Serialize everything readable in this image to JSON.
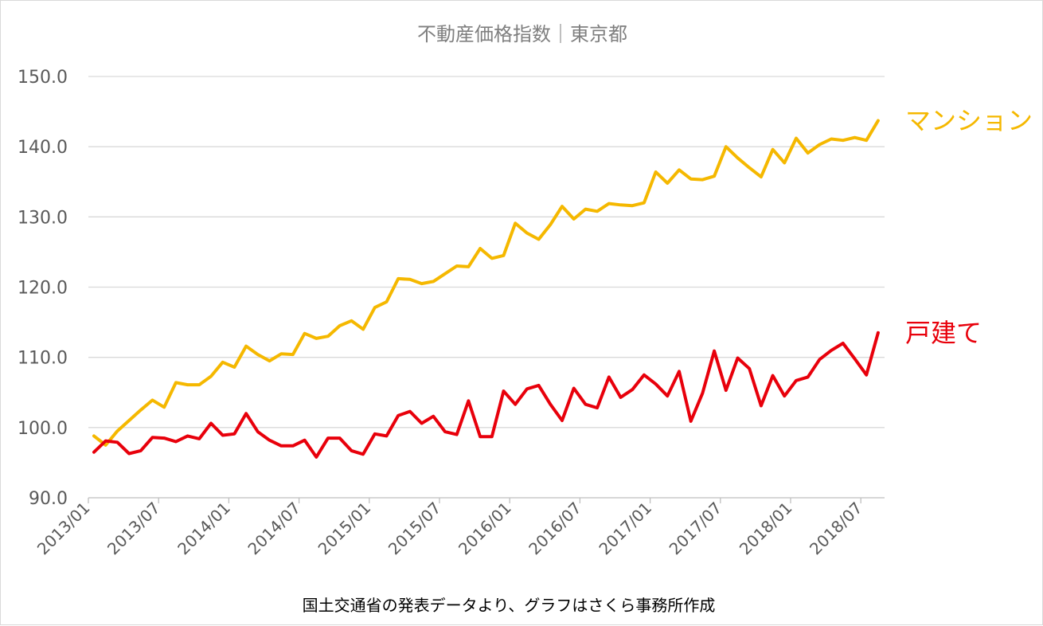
{
  "chart_data": {
    "type": "line",
    "title": "不動産価格指数｜東京都",
    "source_note": "国土交通省の発表データより、グラフはさくら事務所作成",
    "ylim": [
      90,
      150
    ],
    "yticks": [
      "150.0",
      "140.0",
      "130.0",
      "120.0",
      "110.0",
      "100.0",
      "90.0"
    ],
    "ytick_values": [
      150,
      140,
      130,
      120,
      110,
      100,
      90
    ],
    "xtick_labels": [
      "2013/01",
      "2013/07",
      "2014/01",
      "2014/07",
      "2015/01",
      "2015/07",
      "2016/01",
      "2016/07",
      "2017/01",
      "2017/07",
      "2018/01",
      "2018/07"
    ],
    "x_start": "2013/01",
    "x_end": "2018/09",
    "grid": true,
    "series": [
      {
        "name": "マンション",
        "color": "#f5b800",
        "values": [
          98.8,
          97.5,
          99.5,
          101.0,
          102.5,
          103.9,
          102.9,
          106.4,
          106.1,
          106.1,
          107.3,
          109.3,
          108.6,
          111.6,
          110.4,
          109.5,
          110.5,
          110.4,
          113.4,
          112.7,
          113.0,
          114.5,
          115.2,
          114.0,
          117.1,
          117.9,
          121.2,
          121.1,
          120.5,
          120.8,
          121.9,
          123.0,
          122.9,
          125.5,
          124.1,
          124.5,
          129.1,
          127.7,
          126.8,
          128.9,
          131.5,
          129.7,
          131.1,
          130.8,
          131.9,
          131.7,
          131.6,
          132.0,
          136.4,
          134.8,
          136.7,
          135.4,
          135.3,
          135.8,
          140.0,
          138.4,
          137.0,
          135.7,
          139.6,
          137.7,
          141.2,
          139.1,
          140.3,
          141.1,
          140.9,
          141.3,
          140.9,
          143.7
        ]
      },
      {
        "name": "戸建て",
        "color": "#e8000b",
        "values": [
          96.5,
          98.1,
          97.9,
          96.3,
          96.7,
          98.6,
          98.5,
          98.0,
          98.8,
          98.4,
          100.6,
          98.9,
          99.1,
          102.0,
          99.4,
          98.2,
          97.4,
          97.4,
          98.2,
          95.8,
          98.5,
          98.5,
          96.7,
          96.2,
          99.1,
          98.8,
          101.7,
          102.3,
          100.6,
          101.6,
          99.4,
          99.0,
          103.8,
          98.7,
          98.7,
          105.2,
          103.3,
          105.5,
          106.0,
          103.3,
          101.0,
          105.6,
          103.3,
          102.8,
          107.2,
          104.3,
          105.4,
          107.5,
          106.2,
          104.5,
          108.0,
          100.9,
          104.9,
          110.9,
          105.3,
          109.9,
          108.4,
          103.1,
          107.4,
          104.5,
          106.7,
          107.2,
          109.7,
          111.0,
          112.0,
          109.8,
          107.5,
          113.5
        ]
      }
    ]
  }
}
